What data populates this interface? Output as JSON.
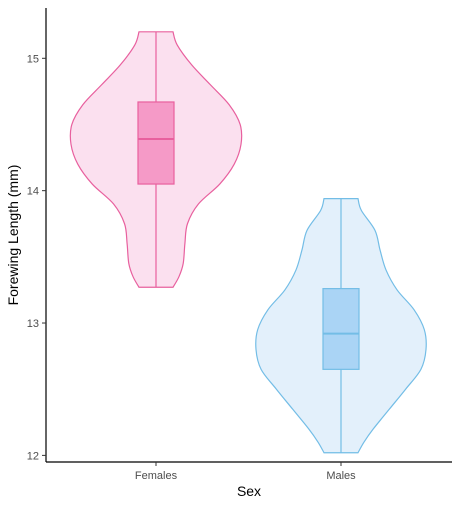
{
  "chart_data": {
    "type": "violin",
    "title": "",
    "xlabel": "Sex",
    "ylabel": "Forewing Length (mm)",
    "categories": [
      "Females",
      "Males"
    ],
    "ylim": [
      11.95,
      15.38
    ],
    "yticks": [
      12,
      13,
      14,
      15
    ],
    "grid": false,
    "legend": "none",
    "series": [
      {
        "category": "Females",
        "fill_color": "#fbe0ef",
        "box_color": "#f59ac7",
        "line_color": "#e8609e",
        "min": 13.27,
        "q1": 14.05,
        "median": 14.39,
        "q3": 14.67,
        "max": 15.2,
        "density": [
          [
            13.27,
            0.2
          ],
          [
            13.35,
            0.27
          ],
          [
            13.45,
            0.32
          ],
          [
            13.6,
            0.34
          ],
          [
            13.75,
            0.37
          ],
          [
            13.9,
            0.5
          ],
          [
            14.05,
            0.75
          ],
          [
            14.2,
            0.92
          ],
          [
            14.35,
            1.0
          ],
          [
            14.5,
            0.99
          ],
          [
            14.65,
            0.86
          ],
          [
            14.8,
            0.64
          ],
          [
            14.95,
            0.42
          ],
          [
            15.1,
            0.25
          ],
          [
            15.2,
            0.2
          ]
        ]
      },
      {
        "category": "Males",
        "fill_color": "#e3f0fb",
        "box_color": "#aad4f5",
        "line_color": "#73bde6",
        "min": 12.02,
        "q1": 12.65,
        "median": 12.92,
        "q3": 13.26,
        "max": 13.94,
        "density": [
          [
            12.02,
            0.2
          ],
          [
            12.1,
            0.27
          ],
          [
            12.2,
            0.38
          ],
          [
            12.35,
            0.57
          ],
          [
            12.5,
            0.76
          ],
          [
            12.65,
            0.94
          ],
          [
            12.8,
            1.0
          ],
          [
            12.95,
            0.98
          ],
          [
            13.1,
            0.86
          ],
          [
            13.25,
            0.66
          ],
          [
            13.4,
            0.53
          ],
          [
            13.55,
            0.46
          ],
          [
            13.7,
            0.4
          ],
          [
            13.85,
            0.24
          ],
          [
            13.94,
            0.2
          ]
        ]
      }
    ]
  }
}
